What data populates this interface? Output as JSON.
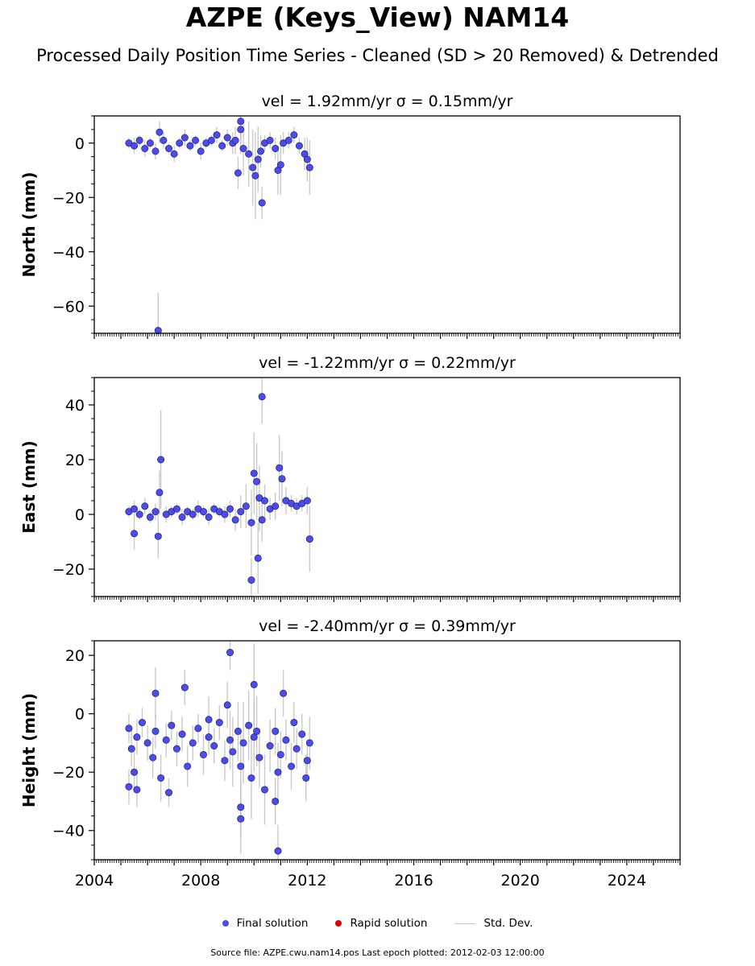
{
  "figure": {
    "title": "AZPE (Keys_View) NAM14",
    "subtitle": "Processed Daily Position Time Series - Cleaned (SD > 20 Removed) & Detrended",
    "footer": "Source file: AZPE.cwu.nam14.pos  Last epoch plotted: 2012-02-03 12:00:00",
    "legend": {
      "final": "Final solution",
      "rapid": "Rapid solution",
      "std": "Std. Dev."
    },
    "colors": {
      "final": "#4b4bf0",
      "rapid": "#e00000",
      "std": "#bdbdbd",
      "edge": "#1a1a40"
    }
  },
  "chart_data": [
    {
      "type": "scatter",
      "title": "vel = 1.92mm/yr   σ = 0.15mm/yr",
      "ylabel": "North (mm)",
      "xlim": [
        2004,
        2026
      ],
      "ylim": [
        -70,
        10
      ],
      "xticks": [
        2004,
        2008,
        2012,
        2016,
        2020,
        2024
      ],
      "yticks": [
        0,
        -20,
        -40,
        -60
      ],
      "show_xticklabels": false,
      "series": [
        {
          "name": "Final solution",
          "x": [
            2005.3,
            2005.5,
            2005.7,
            2005.9,
            2006.1,
            2006.3,
            2006.45,
            2006.6,
            2006.8,
            2007.0,
            2007.2,
            2007.4,
            2007.6,
            2007.8,
            2008.0,
            2008.2,
            2008.4,
            2008.6,
            2008.8,
            2009.0,
            2009.2,
            2009.3,
            2009.4,
            2009.5,
            2009.6,
            2009.8,
            2009.95,
            2010.05,
            2010.15,
            2010.25,
            2010.4,
            2010.6,
            2010.8,
            2010.9,
            2011.0,
            2011.1,
            2011.3,
            2011.5,
            2011.7,
            2011.9,
            2012.0,
            2012.09,
            2006.4,
            2010.3,
            2009.5
          ],
          "y": [
            0,
            -1,
            1,
            -2,
            0,
            -3,
            4,
            1,
            -2,
            -4,
            0,
            2,
            -1,
            1,
            -3,
            0,
            1,
            3,
            -1,
            2,
            0,
            1,
            -11,
            8,
            -2,
            -4,
            -9,
            -12,
            -6,
            -3,
            0,
            1,
            -2,
            -10,
            -8,
            0,
            1,
            3,
            -1,
            -4,
            -6,
            -9,
            -69,
            -22,
            5
          ],
          "yerr": [
            2,
            3,
            2,
            3,
            2,
            3,
            4,
            3,
            2,
            3,
            2,
            3,
            2,
            2,
            3,
            2,
            2,
            3,
            2,
            3,
            4,
            5,
            6,
            8,
            10,
            12,
            14,
            16,
            12,
            6,
            3,
            3,
            4,
            9,
            11,
            4,
            3,
            3,
            3,
            6,
            8,
            10,
            14,
            6,
            9
          ]
        }
      ]
    },
    {
      "type": "scatter",
      "title": "vel = -1.22mm/yr   σ = 0.22mm/yr",
      "ylabel": "East (mm)",
      "xlim": [
        2004,
        2026
      ],
      "ylim": [
        -30,
        50
      ],
      "xticks": [
        2004,
        2008,
        2012,
        2016,
        2020,
        2024
      ],
      "yticks": [
        40,
        20,
        0,
        -20
      ],
      "show_xticklabels": false,
      "series": [
        {
          "name": "Final solution",
          "x": [
            2005.3,
            2005.5,
            2005.7,
            2005.9,
            2006.1,
            2006.3,
            2006.45,
            2006.5,
            2006.7,
            2006.9,
            2007.1,
            2007.3,
            2007.5,
            2007.7,
            2007.9,
            2008.1,
            2008.3,
            2008.5,
            2008.7,
            2008.9,
            2009.1,
            2009.3,
            2009.5,
            2009.7,
            2009.9,
            2010.0,
            2010.1,
            2010.2,
            2010.3,
            2010.4,
            2010.6,
            2010.8,
            2010.95,
            2011.05,
            2011.2,
            2011.4,
            2011.6,
            2011.8,
            2012.0,
            2012.09,
            2006.4,
            2005.5,
            2010.3,
            2010.15,
            2009.9
          ],
          "y": [
            1,
            2,
            0,
            3,
            -1,
            1,
            8,
            20,
            0,
            1,
            2,
            -1,
            1,
            0,
            2,
            1,
            -1,
            2,
            1,
            0,
            2,
            -2,
            1,
            3,
            -3,
            15,
            12,
            6,
            43,
            5,
            2,
            3,
            17,
            13,
            5,
            4,
            3,
            4,
            5,
            -9,
            -8,
            -7,
            -2,
            -16,
            -24
          ],
          "yerr": [
            2,
            3,
            2,
            3,
            2,
            3,
            8,
            18,
            3,
            2,
            2,
            3,
            2,
            2,
            3,
            2,
            3,
            2,
            2,
            3,
            3,
            4,
            6,
            8,
            12,
            15,
            14,
            12,
            10,
            6,
            4,
            5,
            12,
            10,
            5,
            3,
            3,
            3,
            5,
            12,
            8,
            6,
            8,
            13,
            8
          ]
        }
      ]
    },
    {
      "type": "scatter",
      "title": "vel = -2.40mm/yr   σ = 0.39mm/yr",
      "ylabel": "Height (mm)",
      "xlim": [
        2004,
        2026
      ],
      "ylim": [
        -50,
        25
      ],
      "xticks": [
        2004,
        2008,
        2012,
        2016,
        2020,
        2024
      ],
      "yticks": [
        20,
        0,
        -20,
        -40
      ],
      "show_xticklabels": true,
      "xticklabels": [
        "2004",
        "2008",
        "2012",
        "2016",
        "2020",
        "2024"
      ],
      "series": [
        {
          "name": "Final solution",
          "x": [
            2005.3,
            2005.4,
            2005.5,
            2005.6,
            2005.8,
            2006.0,
            2006.2,
            2006.3,
            2006.5,
            2006.7,
            2006.9,
            2007.1,
            2007.3,
            2007.5,
            2007.7,
            2007.9,
            2008.1,
            2008.3,
            2008.5,
            2008.7,
            2008.9,
            2009.0,
            2009.1,
            2009.2,
            2009.4,
            2009.5,
            2009.6,
            2009.8,
            2009.9,
            2010.0,
            2010.2,
            2010.4,
            2010.6,
            2010.8,
            2010.9,
            2011.0,
            2011.2,
            2011.4,
            2011.6,
            2011.8,
            2011.95,
            2012.09,
            2005.6,
            2006.8,
            2007.4,
            2009.1,
            2009.5,
            2009.5,
            2010.0,
            2010.1,
            2010.9,
            2011.1,
            2008.3,
            2006.3,
            2010.8,
            2011.5,
            2012.0,
            2005.3
          ],
          "y": [
            -5,
            -12,
            -20,
            -8,
            -3,
            -10,
            -15,
            -6,
            -22,
            -9,
            -4,
            -12,
            -7,
            -18,
            -10,
            -5,
            -14,
            -8,
            -11,
            -3,
            -16,
            3,
            -9,
            -13,
            -6,
            -18,
            -10,
            -4,
            -22,
            -8,
            -15,
            -26,
            -11,
            -6,
            -20,
            -14,
            -9,
            -18,
            -12,
            -7,
            -22,
            -10,
            -26,
            -27,
            9,
            21,
            -32,
            -36,
            10,
            -6,
            -47,
            7,
            -2,
            7,
            -30,
            -3,
            -16,
            -25
          ],
          "yerr": [
            5,
            6,
            7,
            6,
            5,
            6,
            7,
            6,
            8,
            6,
            5,
            6,
            6,
            7,
            6,
            5,
            7,
            6,
            6,
            6,
            7,
            8,
            10,
            12,
            10,
            12,
            14,
            12,
            14,
            12,
            10,
            12,
            9,
            8,
            10,
            8,
            7,
            8,
            7,
            7,
            8,
            9,
            6,
            5,
            6,
            6,
            10,
            12,
            14,
            12,
            9,
            8,
            8,
            9,
            8,
            7,
            7,
            6
          ]
        }
      ]
    }
  ]
}
